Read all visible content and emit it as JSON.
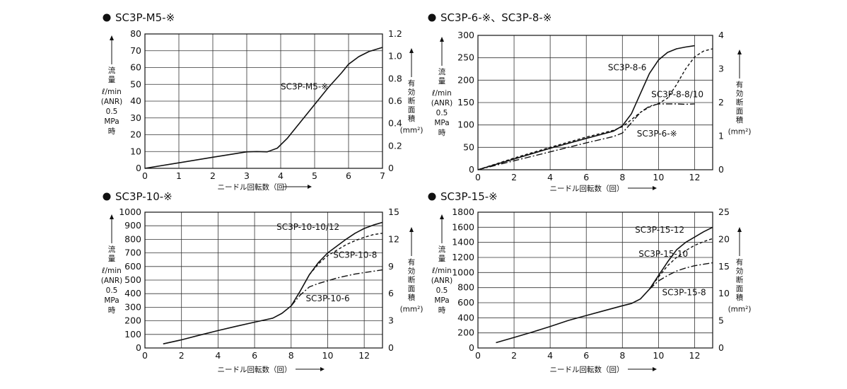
{
  "chart_data": [
    {
      "type": "line",
      "title": "SC3P-M5-※",
      "xlabel": "ニードル回転数（回）",
      "ylabel": [
        "流",
        "量",
        "ℓ/min",
        "(ANR)",
        "0.5",
        "MPa",
        "時"
      ],
      "y2label": [
        "有",
        "効",
        "断",
        "面",
        "積",
        "(mm²)"
      ],
      "xlim": [
        0,
        7
      ],
      "ylim": [
        0,
        80
      ],
      "y2lim": [
        0,
        1.2
      ],
      "x_ticks": [
        0,
        1,
        2,
        3,
        4,
        5,
        6,
        7
      ],
      "y_ticks": [
        0,
        10,
        20,
        30,
        40,
        50,
        60,
        70,
        80
      ],
      "y2_ticks": [
        "0",
        "0.2",
        "0.4",
        "0.6",
        "0.8",
        "1.0",
        "1.2"
      ],
      "grid": true,
      "series": [
        {
          "name": "SC3P-M5-※",
          "style": "solid",
          "x": [
            0,
            1,
            2,
            3,
            3.3,
            3.6,
            3.9,
            4.2,
            4.6,
            5.0,
            5.4,
            5.8,
            6.0,
            6.3,
            6.6,
            7.0
          ],
          "y": [
            0,
            3.3,
            6.6,
            9.8,
            10,
            9.8,
            12,
            18,
            28,
            38,
            48,
            57,
            62,
            66.5,
            69.5,
            72
          ]
        }
      ],
      "annotations": [
        {
          "text": "SC3P-M5-※",
          "x": 4.0,
          "y": 47
        }
      ]
    },
    {
      "type": "line",
      "title": "SC3P-6-※、SC3P-8-※",
      "xlabel": "ニードル回転数（回）",
      "ylabel": [
        "流",
        "量",
        "ℓ/min",
        "(ANR)",
        "0.5",
        "MPa",
        "時"
      ],
      "y2label": [
        "有",
        "効",
        "断",
        "面",
        "積",
        "(mm²)"
      ],
      "xlim": [
        0,
        13
      ],
      "ylim": [
        0,
        300
      ],
      "y2lim": [
        0,
        4
      ],
      "x_ticks": [
        0,
        2,
        4,
        6,
        8,
        10,
        12
      ],
      "y_ticks": [
        0,
        50,
        100,
        150,
        200,
        250,
        300
      ],
      "y2_ticks": [
        "0",
        "1",
        "2",
        "3",
        "4"
      ],
      "grid": true,
      "series": [
        {
          "name": "SC3P-8-6",
          "style": "solid",
          "x": [
            0,
            2,
            4,
            6,
            7.5,
            8,
            8.5,
            9,
            9.5,
            10,
            10.5,
            11,
            11.5,
            12
          ],
          "y": [
            0,
            24,
            48,
            70,
            86,
            98,
            125,
            170,
            215,
            245,
            262,
            270,
            274,
            277
          ]
        },
        {
          "name": "SC3P-8-8/10",
          "style": "dashed",
          "x": [
            0,
            2,
            4,
            6,
            7.5,
            8,
            8.5,
            9,
            9.5,
            10,
            10.5,
            11,
            11.5,
            12,
            12.5,
            13
          ],
          "y": [
            0,
            26,
            50,
            73,
            88,
            96,
            112,
            128,
            140,
            148,
            160,
            190,
            225,
            252,
            265,
            270
          ]
        },
        {
          "name": "SC3P-6-※",
          "style": "dashdot",
          "x": [
            0,
            2,
            4,
            6,
            7.5,
            8,
            8.5,
            9,
            9.5,
            10,
            10.5,
            11,
            11.5,
            12
          ],
          "y": [
            0,
            20,
            40,
            60,
            74,
            82,
            105,
            128,
            142,
            147,
            147,
            147,
            146,
            147
          ]
        }
      ],
      "annotations": [
        {
          "text": "SC3P-8-6",
          "x": 7.2,
          "y": 222
        },
        {
          "text": "SC3P-8-8/10",
          "x": 9.6,
          "y": 162
        },
        {
          "text": "SC3P-6-※",
          "x": 8.8,
          "y": 74
        }
      ]
    },
    {
      "type": "line",
      "title": "SC3P-10-※",
      "xlabel": "ニードル回転数（回）",
      "ylabel": [
        "流",
        "量",
        "ℓ/min",
        "(ANR)",
        "0.5",
        "MPa",
        "時"
      ],
      "y2label": [
        "有",
        "効",
        "断",
        "面",
        "積",
        "(mm²)"
      ],
      "xlim": [
        0,
        13
      ],
      "ylim": [
        0,
        1000
      ],
      "y2lim": [
        0,
        15
      ],
      "x_ticks": [
        0,
        2,
        4,
        6,
        8,
        10,
        12
      ],
      "y_ticks": [
        0,
        100,
        200,
        300,
        400,
        500,
        600,
        700,
        800,
        900,
        1000
      ],
      "y2_ticks": [
        "0",
        "3",
        "6",
        "9",
        "12",
        "15"
      ],
      "grid": true,
      "series": [
        {
          "name": "SC3P-10-10/12",
          "style": "solid",
          "x": [
            1,
            2,
            3,
            4,
            5,
            6,
            7,
            7.5,
            8,
            8.5,
            9,
            9.5,
            10,
            10.5,
            11,
            11.5,
            12,
            12.5,
            13
          ],
          "y": [
            30,
            60,
            95,
            128,
            160,
            190,
            220,
            255,
            310,
            420,
            540,
            630,
            700,
            750,
            800,
            845,
            880,
            905,
            925
          ]
        },
        {
          "name": "SC3P-10-8",
          "style": "dashed",
          "x": [
            9,
            9.5,
            10,
            10.5,
            11,
            11.5,
            12,
            12.5,
            13
          ],
          "y": [
            540,
            620,
            680,
            720,
            760,
            790,
            815,
            835,
            845
          ]
        },
        {
          "name": "SC3P-10-6",
          "style": "dashdot",
          "x": [
            8,
            8.5,
            9,
            9.5,
            10,
            10.5,
            11,
            11.5,
            12,
            12.5,
            13
          ],
          "y": [
            310,
            390,
            450,
            475,
            495,
            515,
            530,
            545,
            555,
            565,
            575
          ]
        }
      ],
      "annotations": [
        {
          "text": "SC3P-10-10/12",
          "x": 7.2,
          "y": 870
        },
        {
          "text": "SC3P-10-8",
          "x": 10.3,
          "y": 665
        },
        {
          "text": "SC3P-10-6",
          "x": 8.8,
          "y": 345
        }
      ]
    },
    {
      "type": "line",
      "title": "SC3P-15-※",
      "xlabel": "ニードル回転数（回）",
      "ylabel": [
        "流",
        "量",
        "ℓ/min",
        "(ANR)",
        "0.5",
        "MPa",
        "時"
      ],
      "y2label": [
        "有",
        "効",
        "断",
        "面",
        "積",
        "(mm²)"
      ],
      "xlim": [
        0,
        13
      ],
      "ylim": [
        0,
        1800
      ],
      "y2lim": [
        0,
        25
      ],
      "x_ticks": [
        0,
        2,
        4,
        6,
        8,
        10,
        12
      ],
      "y_ticks": [
        0,
        200,
        400,
        600,
        800,
        1000,
        1200,
        1400,
        1600,
        1800
      ],
      "y2_ticks": [
        "0",
        "5",
        "10",
        "15",
        "20",
        "25"
      ],
      "grid": true,
      "series": [
        {
          "name": "SC3P-15-12",
          "style": "solid",
          "x": [
            1,
            2,
            3,
            4,
            5,
            6,
            7,
            8,
            8.5,
            9,
            9.5,
            10,
            10.5,
            11,
            11.5,
            12,
            12.5,
            13
          ],
          "y": [
            70,
            140,
            210,
            285,
            365,
            430,
            495,
            560,
            590,
            650,
            780,
            960,
            1140,
            1300,
            1400,
            1470,
            1540,
            1600
          ]
        },
        {
          "name": "SC3P-15-10",
          "style": "dashed",
          "x": [
            9.5,
            10,
            10.5,
            11,
            11.5,
            12,
            12.5,
            13
          ],
          "y": [
            780,
            940,
            1090,
            1200,
            1290,
            1360,
            1410,
            1450
          ]
        },
        {
          "name": "SC3P-15-8",
          "style": "dashdot",
          "x": [
            9.5,
            10,
            10.5,
            11,
            11.5,
            12,
            12.5,
            13
          ],
          "y": [
            780,
            890,
            960,
            1020,
            1060,
            1090,
            1110,
            1130
          ]
        }
      ],
      "annotations": [
        {
          "text": "SC3P-15-12",
          "x": 8.7,
          "y": 1530
        },
        {
          "text": "SC3P-15-10",
          "x": 8.9,
          "y": 1210
        },
        {
          "text": "SC3P-15-8",
          "x": 10.2,
          "y": 700
        }
      ]
    }
  ]
}
